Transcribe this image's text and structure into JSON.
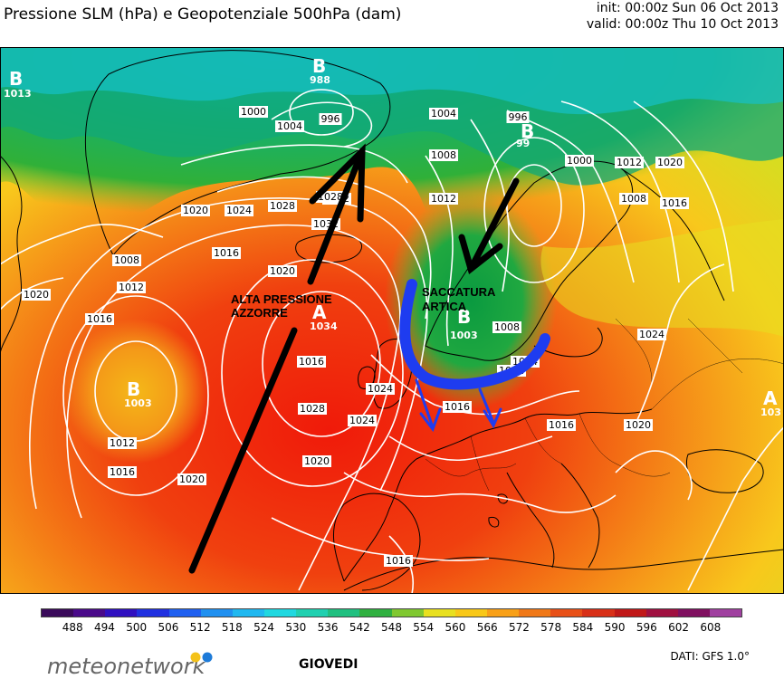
{
  "title": "Pressione SLM (hPa) e Geopotenziale 500hPa (dam)",
  "run_info": {
    "init": "init: 00:00z Sun 06 Oct 2013",
    "valid": "valid: 00:00z Thu 10 Oct 2013"
  },
  "centers": [
    {
      "letter": "B",
      "value": "988"
    },
    {
      "letter": "B",
      "value": "1003"
    },
    {
      "letter": "B",
      "value": "1003"
    },
    {
      "letter": "A",
      "value": "1034"
    },
    {
      "letter": "B",
      "value": "99"
    },
    {
      "letter": "B",
      "value": "1013"
    },
    {
      "letter": "A",
      "value": "103"
    }
  ],
  "isobar_labels": [
    "1000",
    "1004",
    "996",
    "1004",
    "1008",
    "1012",
    "1016",
    "1020",
    "1024",
    "1028",
    "1032",
    "1008",
    "1012",
    "1016",
    "1020",
    "1012",
    "1016",
    "1020",
    "1024",
    "1028",
    "1004",
    "996",
    "1000",
    "1012",
    "1020",
    "1008",
    "1016",
    "1024",
    "1020",
    "1016",
    "1012",
    "1016",
    "1020",
    "1016",
    "1008",
    "1012",
    "1016",
    "1020",
    "1024",
    "1028"
  ],
  "annotations": {
    "high": [
      "ALTA PRESSIONE",
      "AZZORRE"
    ],
    "trough": [
      "SACCATURA",
      "ARTICA"
    ]
  },
  "colors": {
    "low": "#1aa638",
    "mid": "#f6d21e",
    "high": "#e8331a",
    "arrow_black": "#000000",
    "arrow_blue": "#1e3cf0"
  },
  "legend": {
    "ticks": [
      "488",
      "494",
      "500",
      "506",
      "512",
      "518",
      "524",
      "530",
      "536",
      "542",
      "548",
      "554",
      "560",
      "566",
      "572",
      "578",
      "584",
      "590",
      "596",
      "602",
      "608"
    ],
    "colors": [
      "#3a0a5a",
      "#4a0a8a",
      "#3010c0",
      "#2030e0",
      "#2060f0",
      "#2090f0",
      "#20b8f0",
      "#20d8e0",
      "#20d0b0",
      "#20c080",
      "#30b040",
      "#80c830",
      "#e8e020",
      "#f8c818",
      "#f8a018",
      "#f07818",
      "#e85018",
      "#d83018",
      "#c01818",
      "#a01040",
      "#801060",
      "#a040a0"
    ]
  },
  "brand": "meteonetwork",
  "day_label": "GIOVEDI",
  "source": "DATI: GFS 1.0°"
}
